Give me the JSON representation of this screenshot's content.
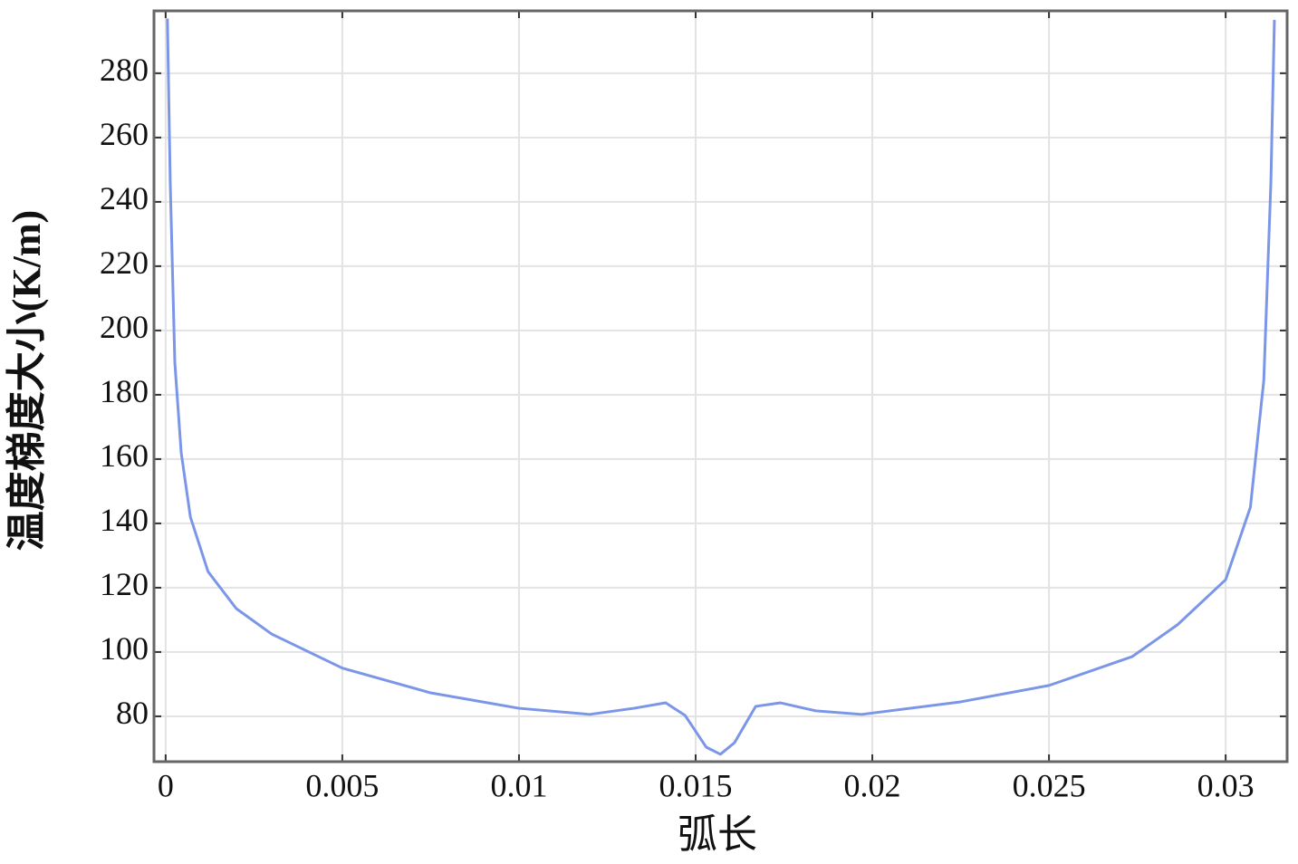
{
  "chart_data": {
    "type": "line",
    "xlabel": "弧长",
    "ylabel": "温度梯度大小(K/m)",
    "xlim": [
      -0.00033,
      0.03174
    ],
    "ylim": [
      65.9,
      299.4
    ],
    "xticks": [
      0,
      0.005,
      0.01,
      0.015,
      0.02,
      0.025,
      0.03
    ],
    "yticks": [
      80,
      100,
      120,
      140,
      160,
      180,
      200,
      220,
      240,
      260,
      280
    ],
    "grid": true,
    "series": [
      {
        "color": "#7b96e8",
        "x": [
          5e-05,
          0.00013,
          0.00026,
          0.00044,
          0.0007,
          0.0012,
          0.002,
          0.003,
          0.005,
          0.0075,
          0.01,
          0.012,
          0.01325,
          0.01415,
          0.0147,
          0.0153,
          0.0157,
          0.0161,
          0.0167,
          0.0174,
          0.0184,
          0.0197,
          0.0225,
          0.025,
          0.02736,
          0.02864,
          0.03,
          0.0307,
          0.03108,
          0.03128,
          0.03138
        ],
        "values": [
          297,
          246,
          190,
          162,
          142,
          125,
          113.5,
          105.6,
          95,
          87.3,
          82.5,
          80.6,
          82.5,
          84.2,
          80.3,
          70.4,
          68.2,
          71.8,
          83.1,
          84.2,
          81.7,
          80.6,
          84.5,
          89.6,
          98.6,
          108.5,
          122.5,
          145,
          184.5,
          246,
          296.6
        ]
      }
    ]
  }
}
